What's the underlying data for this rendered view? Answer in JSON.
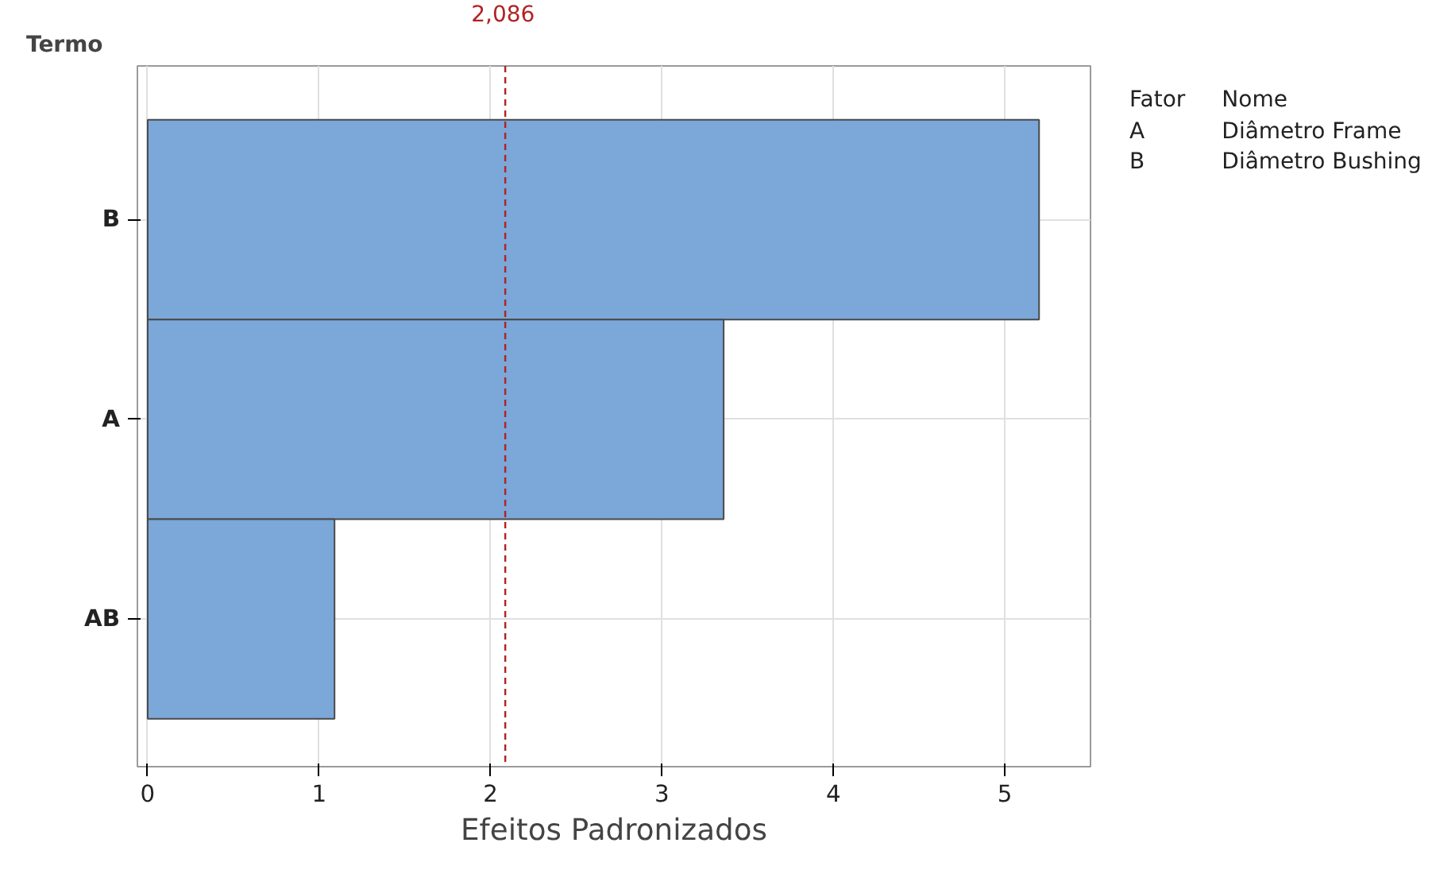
{
  "chart_data": {
    "type": "bar",
    "orientation": "horizontal",
    "ylabel": "Termo",
    "xlabel": "Efeitos Padronizados",
    "categories": [
      "B",
      "A",
      "AB"
    ],
    "values": [
      5.2,
      3.36,
      1.09
    ],
    "color": "#7ba7d9",
    "xlim": [
      -0.06,
      5.5
    ],
    "xticks": [
      0,
      1,
      2,
      3,
      4,
      5
    ],
    "grid": true,
    "ref_lines": [
      {
        "axis": "x",
        "value": 2.086,
        "label": "2,086",
        "color": "#b22222",
        "line_style": "dashed"
      }
    ],
    "annotations": [
      "Fator",
      "Nome",
      "A",
      "Diâmetro Frame",
      "B",
      "Diâmetro Bushing"
    ]
  }
}
